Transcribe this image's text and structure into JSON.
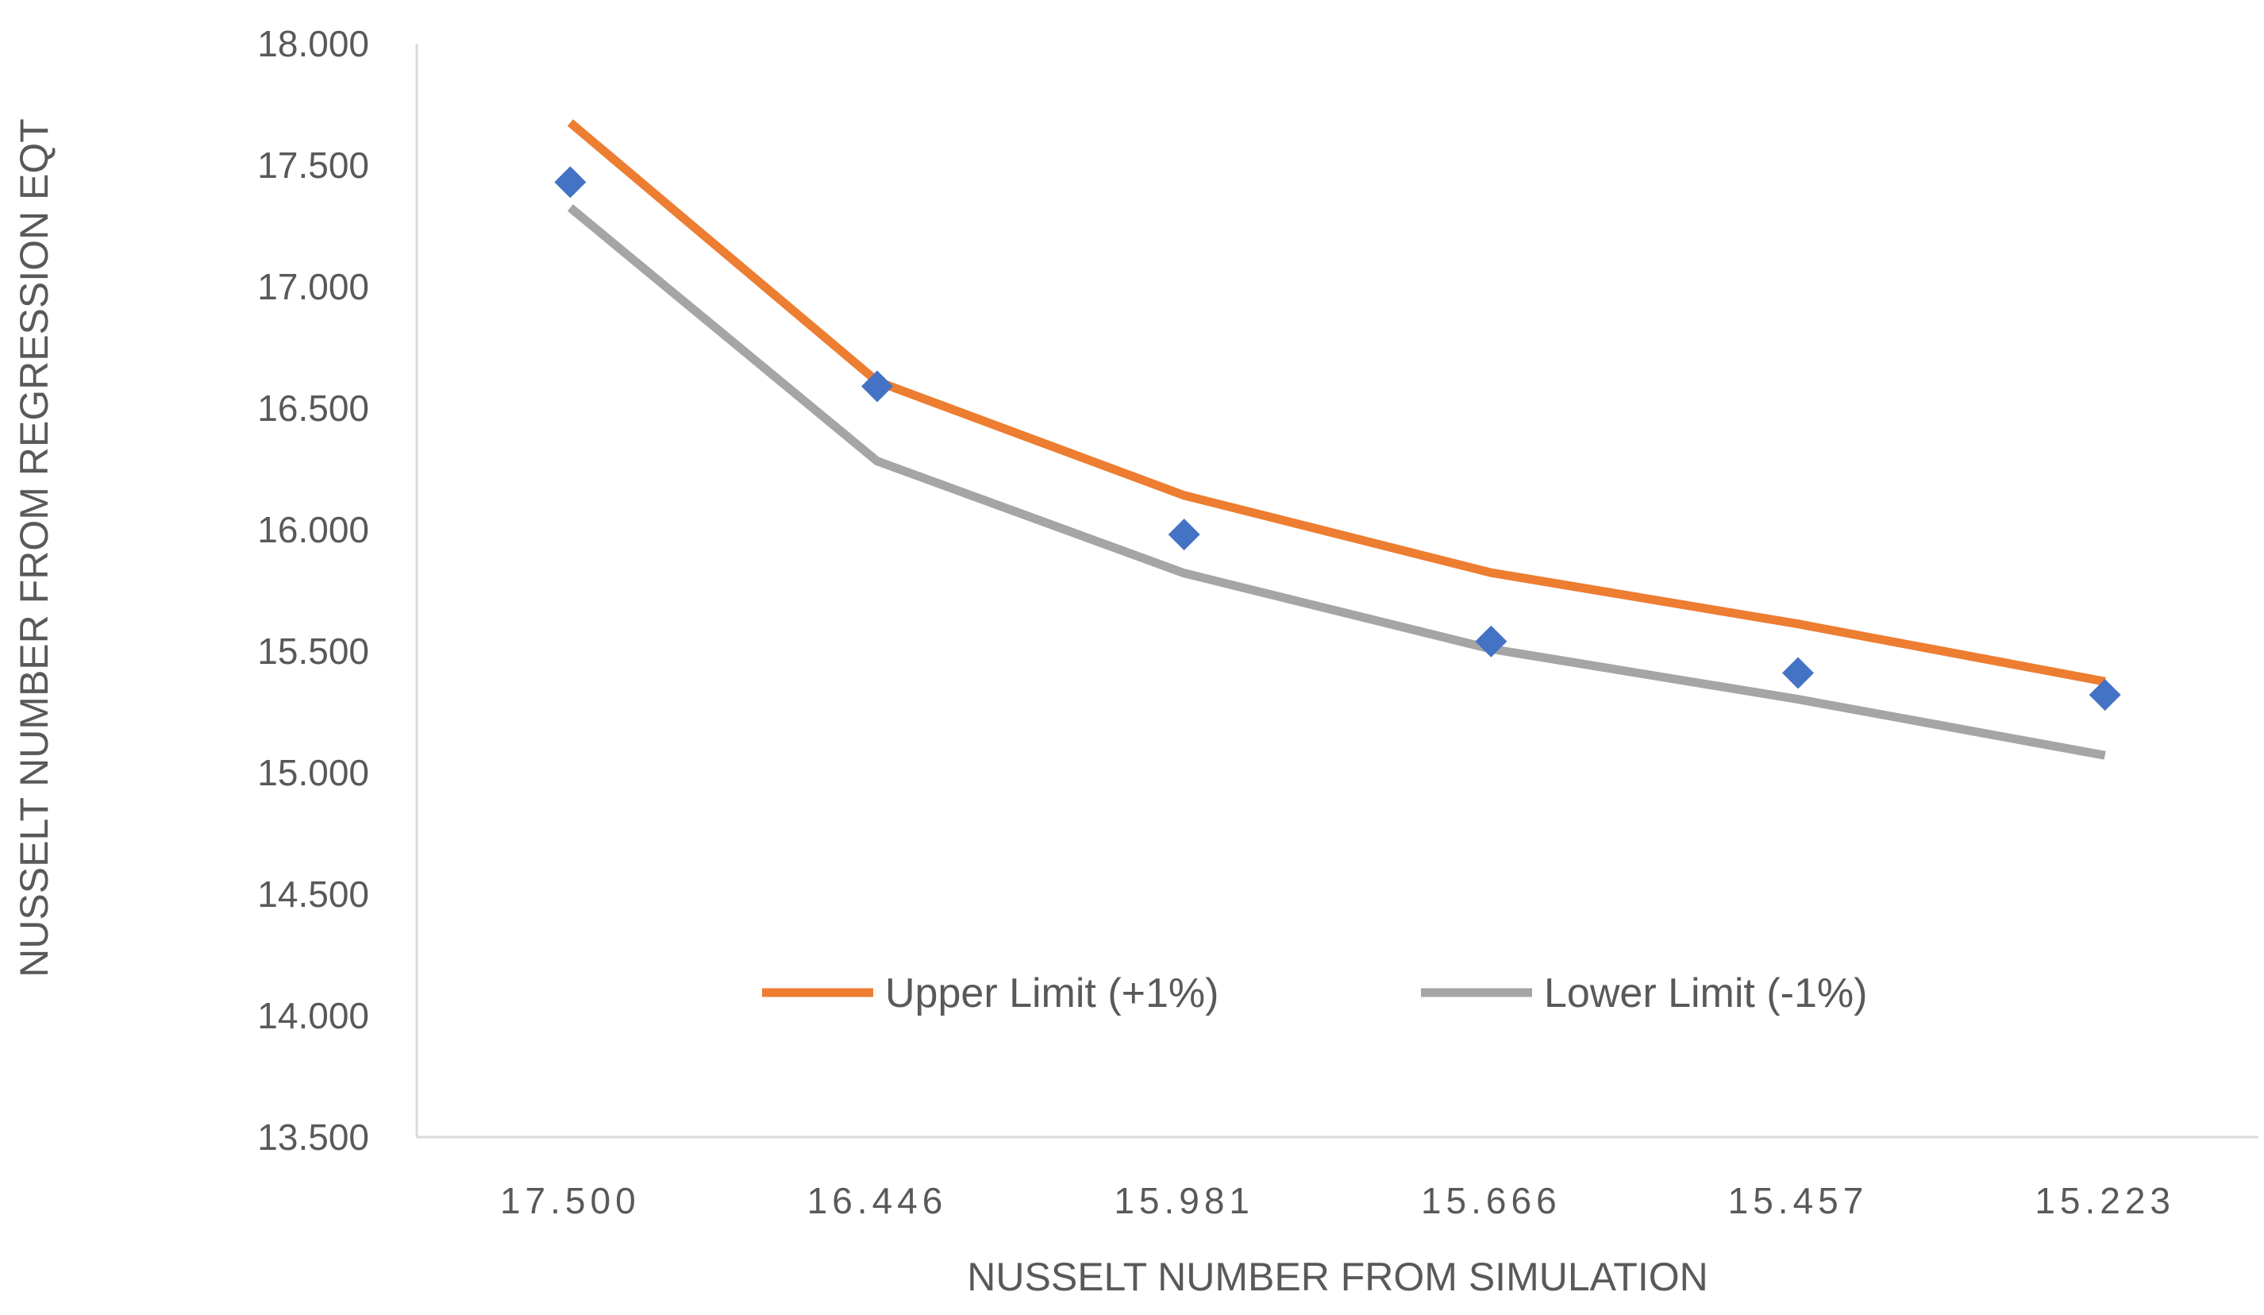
{
  "chart_data": {
    "type": "line",
    "title": "",
    "xlabel": "NUSSELT NUMBER FROM SIMULATION",
    "ylabel": "NUSSELT  NUMBER FROM REGRESSION EQT",
    "categories": [
      "17.500",
      "16.446",
      "15.981",
      "15.666",
      "15.457",
      "15.223"
    ],
    "yticks": [
      "18.000",
      "17.500",
      "17.000",
      "16.500",
      "16.000",
      "15.500",
      "15.000",
      "14.500",
      "14.000",
      "13.500"
    ],
    "ylim": [
      13.5,
      18.0
    ],
    "grid": false,
    "legend_position": "inside-bottom-center",
    "series": [
      {
        "name": "Upper Limit (+1%)",
        "kind": "line",
        "color": "#ED7D31",
        "values": [
          17.675,
          16.61,
          16.141,
          15.823,
          15.612,
          15.375
        ]
      },
      {
        "name": "Lower Limit (-1%)",
        "kind": "line",
        "color": "#A5A5A5",
        "values": [
          17.325,
          16.282,
          15.821,
          15.509,
          15.302,
          15.071
        ]
      },
      {
        "kind": "scatter",
        "marker": "diamond",
        "color": "#4472C4",
        "values": [
          17.43,
          16.59,
          15.98,
          15.54,
          15.41,
          15.32
        ]
      }
    ]
  }
}
